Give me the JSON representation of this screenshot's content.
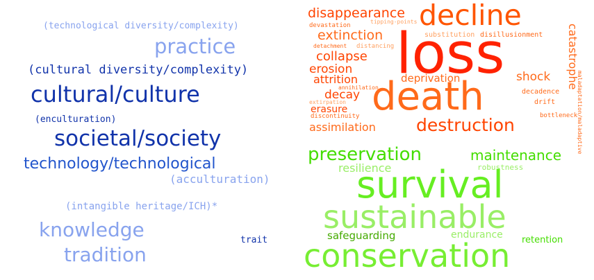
{
  "palette": {
    "blue_dark": "#1133aa",
    "blue_mid": "#2255cc",
    "blue_light": "#88a3ee",
    "red": "#ff2200",
    "orange": "#ff6a1a",
    "orange_light": "#ffa060",
    "green": "#44dd00",
    "green_light": "#99ee66"
  },
  "left_cloud": {
    "words": [
      "(technological diversity/complexity)",
      "practice",
      "(cultural diversity/complexity)",
      "cultural/culture",
      "(enculturation)",
      "societal/society",
      "technology/technological",
      "(acculturation)",
      "(intangible heritage/ICH)*",
      "knowledge",
      "tradition",
      "trait"
    ]
  },
  "right_cloud": {
    "loss_words": [
      "disappearance",
      "decline",
      "devastation",
      "tipping-points",
      "extinction",
      "substitution",
      "disillusionment",
      "detachment",
      "distancing",
      "loss",
      "collapse",
      "catastrophe",
      "erosion",
      "deprivation",
      "attrition",
      "shock",
      "annihilation",
      "decay",
      "decadence",
      "extirpation",
      "discontinuity",
      "erasure",
      "death",
      "drift",
      "bottleneck",
      "maladaptation/maladaptive",
      "assimilation",
      "destruction"
    ],
    "survival_words": [
      "preservation",
      "maintenance",
      "resilience",
      "robustness",
      "survival",
      "sustainable",
      "safeguarding",
      "endurance",
      "retention",
      "conservation"
    ]
  }
}
